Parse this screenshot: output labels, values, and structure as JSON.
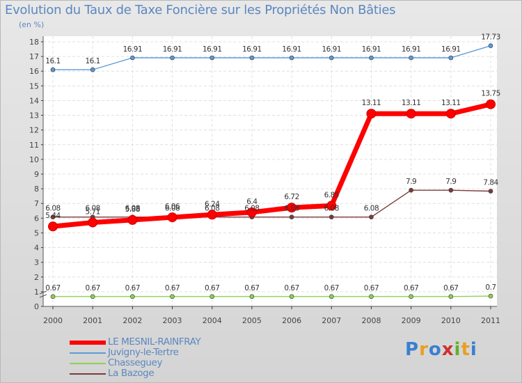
{
  "chart_data": {
    "type": "line",
    "title": "Evolution du Taux de Taxe Foncière sur les Propriétés Non Bâties",
    "ylabel": "(en %)",
    "xlabel": "",
    "ylim": [
      0,
      18
    ],
    "yticks": [
      "0",
      "1",
      "2",
      "3",
      "4",
      "5",
      "6",
      "7",
      "8",
      "9",
      "10",
      "11",
      "12",
      "13",
      "14",
      "15",
      "16",
      "17",
      "18"
    ],
    "categories": [
      "2000",
      "2001",
      "2002",
      "2003",
      "2004",
      "2005",
      "2006",
      "2007",
      "2008",
      "2009",
      "2010",
      "2011"
    ],
    "series": [
      {
        "name": "Juvigny-le-Tertre",
        "color": "#5b9bd5",
        "emphasis": false,
        "values": [
          16.1,
          16.1,
          16.91,
          16.91,
          16.91,
          16.91,
          16.91,
          16.91,
          16.91,
          16.91,
          16.91,
          17.73
        ],
        "labels": [
          "16.1",
          "16.1",
          "16.91",
          "16.91",
          "16.91",
          "16.91",
          "16.91",
          "16.91",
          "16.91",
          "16.91",
          "16.91",
          "17.73"
        ]
      },
      {
        "name": "La Bazoge",
        "color": "#7b3b3b",
        "emphasis": false,
        "values": [
          6.08,
          6.08,
          6.08,
          6.08,
          6.08,
          6.08,
          6.08,
          6.08,
          6.08,
          7.9,
          7.9,
          7.84
        ],
        "labels": [
          "6.08",
          "6.08",
          "6.08",
          "6.08",
          "6.08",
          "6.08",
          "6.08",
          "6.08",
          "6.08",
          "7.9",
          "7.9",
          "7.84"
        ]
      },
      {
        "name": "Chasseguey",
        "color": "#8fd14f",
        "emphasis": false,
        "values": [
          0.67,
          0.67,
          0.67,
          0.67,
          0.67,
          0.67,
          0.67,
          0.67,
          0.67,
          0.67,
          0.67,
          0.7
        ],
        "labels": [
          "0.67",
          "0.67",
          "0.67",
          "0.67",
          "0.67",
          "0.67",
          "0.67",
          "0.67",
          "0.67",
          "0.67",
          "0.67",
          "0.7"
        ]
      },
      {
        "name": "LE MESNIL-RAINFRAY",
        "color": "#ff0000",
        "emphasis": true,
        "values": [
          5.44,
          5.71,
          5.88,
          6.06,
          6.24,
          6.4,
          6.72,
          6.85,
          13.11,
          13.11,
          13.11,
          13.75
        ],
        "labels": [
          "5.44",
          "5.71",
          "5.88",
          "6.06",
          "6.24",
          "6.4",
          "6.72",
          "6.85",
          "13.11",
          "13.11",
          "13.11",
          "13.75"
        ]
      }
    ]
  },
  "legend": {
    "items": [
      {
        "label": "LE MESNIL-RAINFRAY",
        "color": "#ff0000",
        "thick": true
      },
      {
        "label": "Juvigny-le-Tertre",
        "color": "#5b9bd5",
        "thick": false
      },
      {
        "label": "Chasseguey",
        "color": "#8fd14f",
        "thick": false
      },
      {
        "label": "La Bazoge",
        "color": "#7b3b3b",
        "thick": false
      }
    ]
  },
  "brand": {
    "letters": [
      "P",
      "r",
      "o",
      "x",
      "i",
      "t",
      "i"
    ],
    "colors": [
      "#3a7fd0",
      "#e8a020",
      "#3a7fd0",
      "#d03030",
      "#60b030",
      "#e8a020",
      "#3a7fd0"
    ]
  }
}
